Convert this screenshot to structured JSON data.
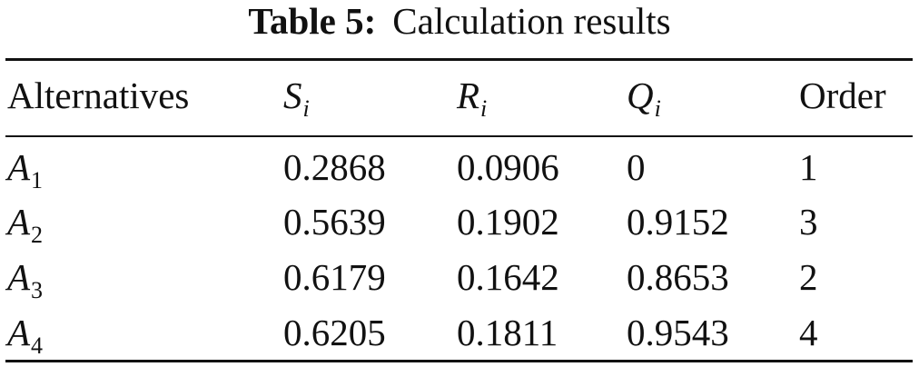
{
  "caption": {
    "label": "Table 5:",
    "title": "Calculation results"
  },
  "table": {
    "headers": [
      {
        "text": "Alternatives"
      },
      {
        "symbol": "S",
        "sub": "i"
      },
      {
        "symbol": "R",
        "sub": "i"
      },
      {
        "symbol": "Q",
        "sub": "i"
      },
      {
        "text": "Order"
      }
    ],
    "rows": [
      {
        "alt_symbol": "A",
        "alt_sub": "1",
        "s": "0.2868",
        "r": "0.0906",
        "q": "0",
        "order": "1"
      },
      {
        "alt_symbol": "A",
        "alt_sub": "2",
        "s": "0.5639",
        "r": "0.1902",
        "q": "0.9152",
        "order": "3"
      },
      {
        "alt_symbol": "A",
        "alt_sub": "3",
        "s": "0.6179",
        "r": "0.1642",
        "q": "0.8653",
        "order": "2"
      },
      {
        "alt_symbol": "A",
        "alt_sub": "4",
        "s": "0.6205",
        "r": "0.1811",
        "q": "0.9543",
        "order": "4"
      }
    ]
  }
}
